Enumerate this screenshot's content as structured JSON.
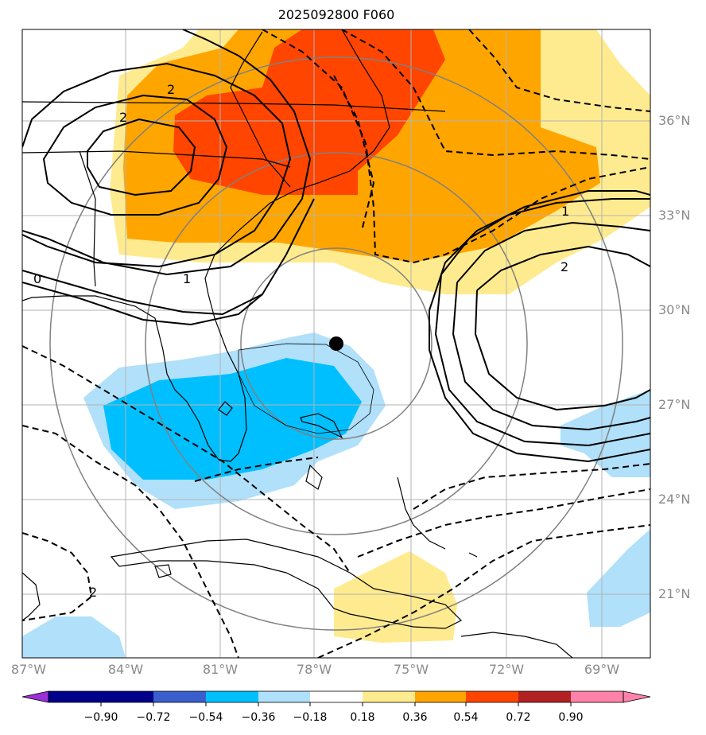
{
  "title": "2025092800 F060",
  "lat_labels": [
    "36°N",
    "33°N",
    "30°N",
    "27°N",
    "24°N",
    "21°N"
  ],
  "lon_labels": [
    "87°W",
    "84°W",
    "81°W",
    "78°W",
    "75°W",
    "72°W",
    "69°W"
  ],
  "colorbar": {
    "ticks": [
      "−0.90",
      "−0.72",
      "−0.54",
      "−0.36",
      "−0.18",
      "0.18",
      "0.36",
      "0.54",
      "0.72",
      "0.90"
    ],
    "colors": [
      "#9b30d9",
      "#00008b",
      "#3a5fcd",
      "#00bfff",
      "#b0e0fa",
      "#ffffff",
      "#ffeb8f",
      "#ffa500",
      "#ff4500",
      "#b22222",
      "#ff82ab"
    ]
  },
  "contour_labels": [
    "2",
    "2",
    "1",
    "0",
    "1",
    "2",
    "2"
  ],
  "center_marker": {
    "lat": 28.9,
    "lon": -77.4
  },
  "fill_colors": {
    "light_yellow": "#ffeb8f",
    "orange": "#ffa500",
    "red_orange": "#ff4500",
    "light_blue": "#b0e0fa",
    "deep_sky_blue": "#00bfff"
  }
}
